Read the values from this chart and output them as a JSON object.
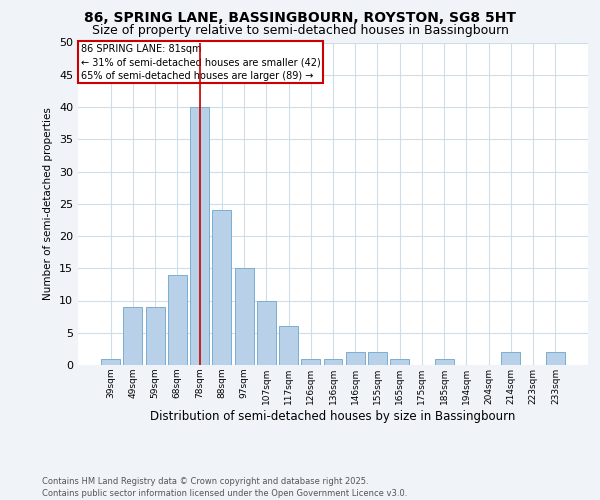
{
  "title": "86, SPRING LANE, BASSINGBOURN, ROYSTON, SG8 5HT",
  "subtitle": "Size of property relative to semi-detached houses in Bassingbourn",
  "xlabel": "Distribution of semi-detached houses by size in Bassingbourn",
  "ylabel": "Number of semi-detached properties",
  "categories": [
    "39sqm",
    "49sqm",
    "59sqm",
    "68sqm",
    "78sqm",
    "88sqm",
    "97sqm",
    "107sqm",
    "117sqm",
    "126sqm",
    "136sqm",
    "146sqm",
    "155sqm",
    "165sqm",
    "175sqm",
    "185sqm",
    "194sqm",
    "204sqm",
    "214sqm",
    "223sqm",
    "233sqm"
  ],
  "values": [
    1,
    9,
    9,
    14,
    40,
    24,
    15,
    10,
    6,
    1,
    1,
    2,
    2,
    1,
    0,
    1,
    0,
    0,
    2,
    0,
    2
  ],
  "bar_color": "#b8d0e8",
  "bar_edge_color": "#7aaed0",
  "vline_index": 4,
  "vline_color": "#cc0000",
  "annotation_title": "86 SPRING LANE: 81sqm",
  "annotation_line1": "← 31% of semi-detached houses are smaller (42)",
  "annotation_line2": "65% of semi-detached houses are larger (89) →",
  "annotation_box_color": "#cc0000",
  "ylim": [
    0,
    50
  ],
  "yticks": [
    0,
    5,
    10,
    15,
    20,
    25,
    30,
    35,
    40,
    45,
    50
  ],
  "footnote": "Contains HM Land Registry data © Crown copyright and database right 2025.\nContains public sector information licensed under the Open Government Licence v3.0.",
  "bg_color": "#f0f4f8",
  "plot_bg_color": "#ffffff",
  "grid_color": "#d0dce8",
  "title_fontsize": 10,
  "subtitle_fontsize": 9
}
